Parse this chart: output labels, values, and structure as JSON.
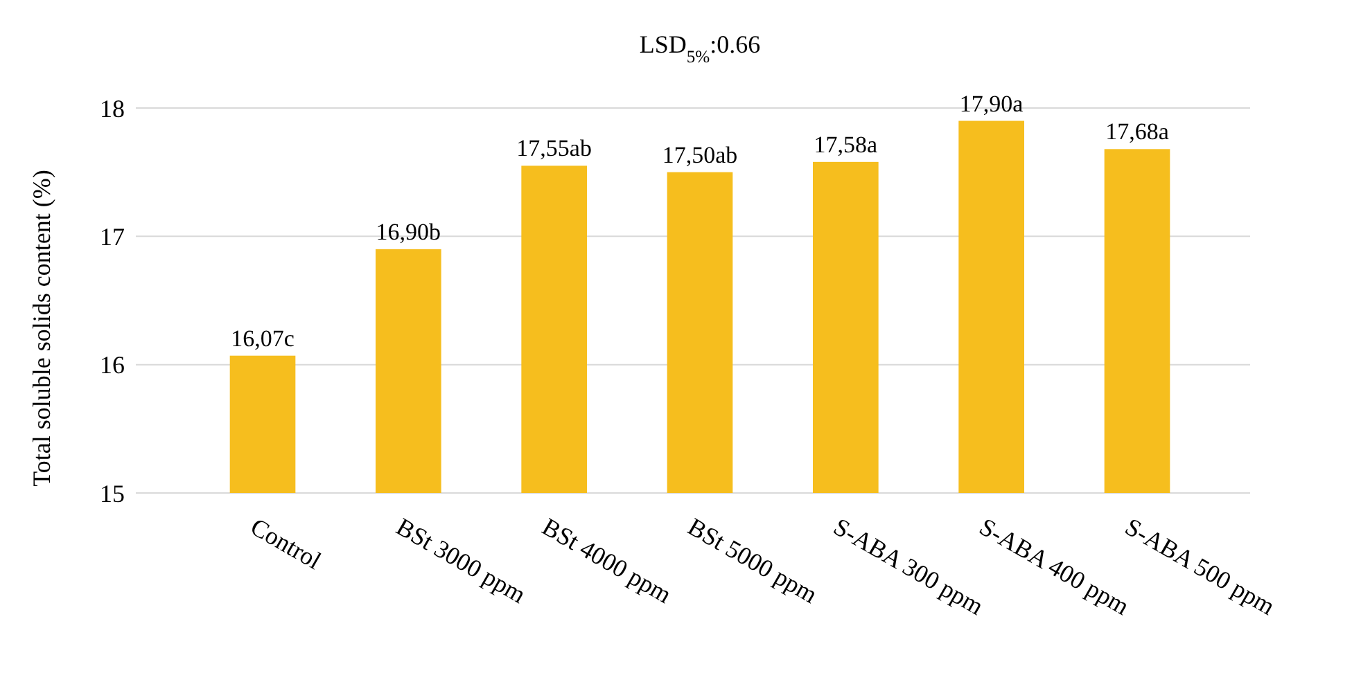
{
  "chart_data": {
    "type": "bar",
    "title": "LSD$_{5%}$:0.66",
    "ylabel": "Total soluble solids content (%)",
    "categories": [
      "Control",
      "BSt 3000 ppm",
      "BSt 4000 ppm",
      "BSt 5000 ppm",
      "S-ABA 300 ppm",
      "S-ABA 400 ppm",
      "S-ABA 500 ppm"
    ],
    "values": [
      16.07,
      16.9,
      17.55,
      17.5,
      17.58,
      17.9,
      17.68
    ],
    "value_labels": [
      "16,07c",
      "16,90b",
      "17,55ab",
      "17,50ab",
      "17,58a",
      "17,90a",
      "17,68a"
    ],
    "color": "#f6be1e",
    "ylim": [
      15,
      18
    ],
    "yticks": [
      15,
      16,
      17,
      18
    ],
    "grid": "y"
  }
}
